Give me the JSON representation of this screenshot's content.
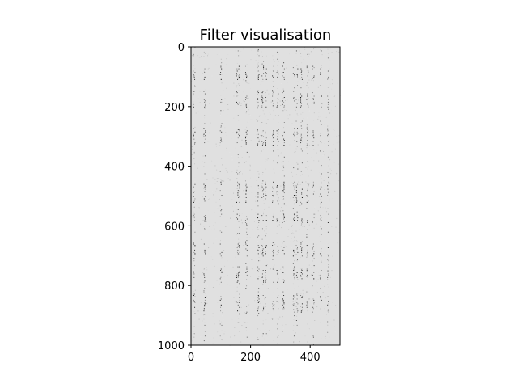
{
  "chart_data": {
    "type": "heatmap",
    "title": "Filter visualisation",
    "xlabel": "",
    "ylabel": "",
    "xlim": [
      0,
      500
    ],
    "ylim": [
      1000,
      0
    ],
    "x_ticks": [
      {
        "value": 0,
        "label": "0"
      },
      {
        "value": 200,
        "label": "200"
      },
      {
        "value": 400,
        "label": "400"
      }
    ],
    "y_ticks": [
      {
        "value": 0,
        "label": "0"
      },
      {
        "value": 200,
        "label": "200"
      },
      {
        "value": 400,
        "label": "400"
      },
      {
        "value": 600,
        "label": "600"
      },
      {
        "value": 800,
        "label": "800"
      },
      {
        "value": 1000,
        "label": "1000"
      }
    ],
    "colormap": "gray",
    "background_color": "#e0e0e0",
    "dark_columns": [
      10,
      45,
      100,
      155,
      160,
      185,
      225,
      240,
      250,
      275,
      290,
      310,
      345,
      355,
      370,
      390,
      410,
      435,
      460
    ],
    "dark_row_bands": [
      [
        60,
        110
      ],
      [
        145,
        200
      ],
      [
        270,
        330
      ],
      [
        450,
        520
      ],
      [
        560,
        590
      ],
      [
        660,
        700
      ],
      [
        730,
        790
      ],
      [
        830,
        890
      ]
    ],
    "grid": false,
    "legend": "none"
  }
}
